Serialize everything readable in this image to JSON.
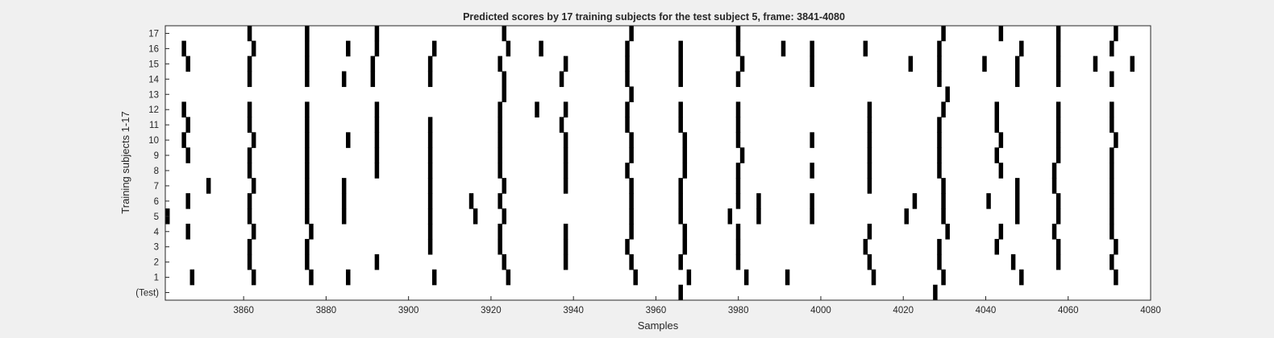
{
  "chart_data": {
    "type": "heatmap",
    "title": "Predicted scores by 17 training subjects for the test subject 5, frame: 3841-4080",
    "xlabel": "Samples",
    "ylabel": "Training subjects 1-17",
    "xlim": [
      3841,
      4080
    ],
    "x_ticks": [
      3860,
      3880,
      3900,
      3920,
      3940,
      3960,
      3980,
      4000,
      4020,
      4040,
      4060,
      4080
    ],
    "y_categories": [
      "(Test)",
      "1",
      "2",
      "3",
      "4",
      "5",
      "6",
      "7",
      "8",
      "9",
      "10",
      "11",
      "12",
      "13",
      "14",
      "15",
      "16",
      "17"
    ],
    "grid": false,
    "colors": {
      "mark": "#000000",
      "background": "#ffffff",
      "figure": "#f0f0f0"
    },
    "rows": [
      {
        "label": "(Test)",
        "samples": [
          3966,
          4028
        ]
      },
      {
        "label": "1",
        "samples": [
          3847,
          3862,
          3876,
          3885,
          3906,
          3924,
          3955,
          3968,
          3982,
          3992,
          4013,
          4030,
          4049,
          4072
        ]
      },
      {
        "label": "2",
        "samples": [
          3861,
          3875,
          3892,
          3923,
          3938,
          3954,
          3966,
          3980,
          4012,
          4029,
          4047,
          4058,
          4071
        ]
      },
      {
        "label": "3",
        "samples": [
          3861,
          3875,
          3905,
          3922,
          3938,
          3953,
          3967,
          3980,
          4011,
          4029,
          4043,
          4058,
          4072
        ]
      },
      {
        "label": "4",
        "samples": [
          3846,
          3862,
          3876,
          3905,
          3922,
          3938,
          3954,
          3967,
          3980,
          4012,
          4031,
          4044,
          4057,
          4071
        ]
      },
      {
        "label": "5",
        "samples": [
          3841,
          3861,
          3875,
          3884,
          3905,
          3916,
          3923,
          3954,
          3966,
          3978,
          3985,
          3998,
          4021,
          4030,
          4048,
          4058,
          4071
        ]
      },
      {
        "label": "6",
        "samples": [
          3846,
          3861,
          3875,
          3884,
          3905,
          3915,
          3922,
          3954,
          3966,
          3980,
          3985,
          3998,
          4023,
          4030,
          4041,
          4048,
          4058,
          4071
        ]
      },
      {
        "label": "7",
        "samples": [
          3851,
          3862,
          3875,
          3884,
          3905,
          3923,
          3938,
          3954,
          3966,
          3980,
          4012,
          4030,
          4048,
          4057,
          4071
        ]
      },
      {
        "label": "8",
        "samples": [
          3861,
          3875,
          3892,
          3905,
          3922,
          3938,
          3953,
          3967,
          3980,
          3998,
          4012,
          4029,
          4044,
          4057,
          4071
        ]
      },
      {
        "label": "9",
        "samples": [
          3846,
          3861,
          3875,
          3892,
          3905,
          3922,
          3938,
          3954,
          3967,
          3981,
          4012,
          4029,
          4043,
          4058,
          4071
        ]
      },
      {
        "label": "10",
        "samples": [
          3845,
          3862,
          3875,
          3885,
          3892,
          3905,
          3922,
          3938,
          3954,
          3967,
          3980,
          3998,
          4012,
          4029,
          4044,
          4058,
          4072
        ]
      },
      {
        "label": "11",
        "samples": [
          3846,
          3861,
          3875,
          3892,
          3905,
          3922,
          3937,
          3953,
          3966,
          3980,
          4012,
          4029,
          4043,
          4058,
          4071
        ]
      },
      {
        "label": "12",
        "samples": [
          3845,
          3861,
          3875,
          3892,
          3922,
          3931,
          3938,
          3953,
          3966,
          3980,
          4012,
          4030,
          4043,
          4058,
          4071
        ]
      },
      {
        "label": "13",
        "samples": [
          3923,
          3954,
          4031
        ]
      },
      {
        "label": "14",
        "samples": [
          3861,
          3875,
          3884,
          3891,
          3905,
          3923,
          3937,
          3953,
          3966,
          3980,
          3998,
          4029,
          4048,
          4058,
          4071
        ]
      },
      {
        "label": "15",
        "samples": [
          3846,
          3861,
          3875,
          3891,
          3905,
          3922,
          3938,
          3953,
          3966,
          3981,
          3998,
          4022,
          4029,
          4040,
          4048,
          4058,
          4067,
          4076
        ]
      },
      {
        "label": "16",
        "samples": [
          3845,
          3862,
          3875,
          3885,
          3892,
          3906,
          3924,
          3932,
          3953,
          3966,
          3980,
          3991,
          3998,
          4011,
          4029,
          4049,
          4058,
          4071
        ]
      },
      {
        "label": "17",
        "samples": [
          3861,
          3875,
          3892,
          3923,
          3954,
          3980,
          4030,
          4044,
          4058,
          4072
        ]
      }
    ]
  }
}
